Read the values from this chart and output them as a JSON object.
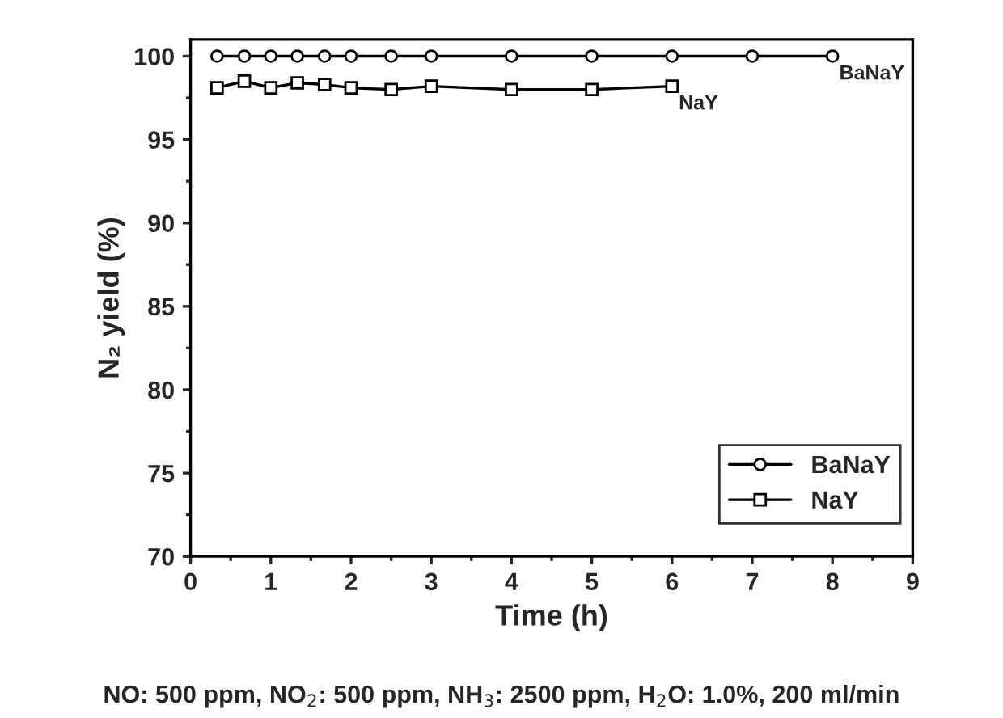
{
  "chart_data": {
    "type": "line",
    "xlabel": "Time (h)",
    "ylabel": "N₂ yield (%)",
    "xlim": [
      0,
      9
    ],
    "xticks": [
      0,
      1,
      2,
      3,
      4,
      5,
      6,
      7,
      8,
      9
    ],
    "ylim": [
      70,
      101
    ],
    "yticks": [
      70,
      75,
      80,
      85,
      90,
      95,
      100
    ],
    "legend": "bottom right",
    "grid": false,
    "series": [
      {
        "name": "BaNaY",
        "color": "#000000",
        "marker": "circle",
        "x": [
          0.33,
          0.67,
          1,
          1.33,
          1.67,
          2,
          2.5,
          3,
          4,
          5,
          6,
          7,
          8
        ],
        "values": [
          100,
          100,
          100,
          100,
          100,
          100,
          100,
          100,
          100,
          100,
          100,
          100,
          100
        ]
      },
      {
        "name": "NaY",
        "color": "#000000",
        "marker": "square",
        "x": [
          0.33,
          0.67,
          1,
          1.33,
          1.67,
          2,
          2.5,
          3,
          4,
          5,
          6
        ],
        "values": [
          98.1,
          98.5,
          98.1,
          98.4,
          98.3,
          98.1,
          98.0,
          98.2,
          98.0,
          98.0,
          98.2
        ]
      }
    ],
    "annotations": [
      {
        "text": "BaNaY",
        "x": 8,
        "y": 100
      },
      {
        "text": "NaY",
        "x": 6,
        "y": 98.2
      },
      "NO: 500 ppm, NO$_{2}$: 500 ppm, NH$_{3}$: 2500 ppm, H$_{2}$O: 1.0%, 200 ml/min"
    ]
  }
}
